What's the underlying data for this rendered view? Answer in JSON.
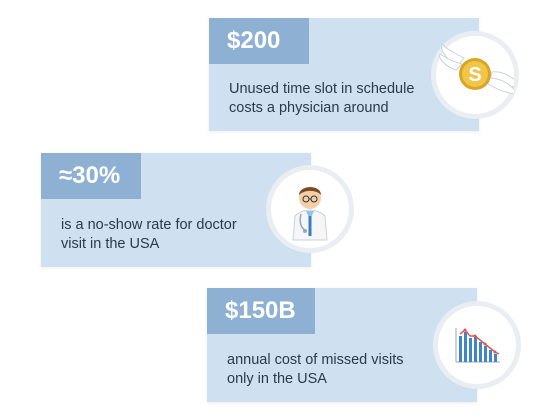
{
  "cards": [
    {
      "stat": "$200",
      "lines": [
        "Unused time slot in schedule",
        "costs a physician around"
      ],
      "icon": "winged-dollar-coin-icon"
    },
    {
      "stat": "≈30%",
      "lines": [
        "is a no-show rate for doctor",
        "visit in the USA"
      ],
      "icon": "doctor-icon"
    },
    {
      "stat": "$150B",
      "lines": [
        "annual cost of missed visits",
        "only in the USA"
      ],
      "icon": "bar-chart-icon"
    }
  ],
  "colors": {
    "card_bg": "#cfe1f1",
    "stat_bg": "#8eb1d3",
    "text": "#2a3a4a"
  }
}
